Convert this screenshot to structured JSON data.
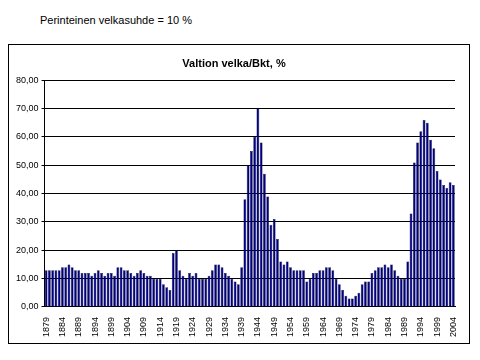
{
  "chart_data": {
    "type": "bar",
    "title": "Valtion velka/Bkt, %",
    "subtitle": "Perinteinen velkasuhde = 10 %",
    "categories": [
      "1879",
      null,
      null,
      null,
      null,
      "1884",
      null,
      null,
      null,
      null,
      "1889",
      null,
      null,
      null,
      null,
      "1894",
      null,
      null,
      null,
      null,
      "1899",
      null,
      null,
      null,
      null,
      "1904",
      null,
      null,
      null,
      null,
      "1909",
      null,
      null,
      null,
      null,
      "1914",
      null,
      null,
      null,
      null,
      "1919",
      null,
      null,
      null,
      null,
      "1924",
      null,
      null,
      null,
      null,
      "1929",
      null,
      null,
      null,
      null,
      "1934",
      null,
      null,
      null,
      null,
      "1939",
      null,
      null,
      null,
      null,
      "1944",
      null,
      null,
      null,
      null,
      "1949",
      null,
      null,
      null,
      null,
      "1954",
      null,
      null,
      null,
      null,
      "1959",
      null,
      null,
      null,
      null,
      "1964",
      null,
      null,
      null,
      null,
      "1969",
      null,
      null,
      null,
      null,
      "1974",
      null,
      null,
      null,
      null,
      "1979",
      null,
      null,
      null,
      null,
      "1984",
      null,
      null,
      null,
      null,
      "1989",
      null,
      null,
      null,
      null,
      "1994",
      null,
      null,
      null,
      null,
      "1999",
      null,
      null,
      null,
      null,
      "2004"
    ],
    "values": [
      13,
      13,
      13,
      13,
      13,
      14,
      14,
      15,
      14,
      13,
      13,
      12,
      12,
      12,
      11,
      12,
      13,
      12,
      11,
      12,
      12,
      11,
      14,
      14,
      13,
      13,
      12,
      11,
      12,
      13,
      12,
      11,
      11,
      10,
      10,
      10,
      8,
      7,
      6,
      19,
      20,
      13,
      11,
      10,
      12,
      11,
      12,
      10,
      10,
      10,
      11,
      13,
      15,
      15,
      14,
      12,
      11,
      10,
      9,
      8,
      14,
      38,
      50,
      55,
      60,
      70,
      58,
      47,
      39,
      29,
      31,
      24,
      16,
      15,
      16,
      14,
      13,
      13,
      13,
      13,
      9,
      10,
      12,
      12,
      13,
      13,
      14,
      14,
      13,
      10,
      8,
      6,
      4,
      3,
      3,
      4,
      5,
      8,
      9,
      9,
      12,
      13,
      14,
      14,
      15,
      14,
      15,
      13,
      11,
      10,
      10,
      16,
      33,
      51,
      58,
      62,
      66,
      65,
      59,
      56,
      48,
      45,
      43,
      42,
      44,
      43
    ],
    "color": "#000080",
    "ylim": [
      0,
      80
    ],
    "yticks": [
      {
        "value": 0,
        "label": "0,00"
      },
      {
        "value": 10,
        "label": "10,00"
      },
      {
        "value": 20,
        "label": "20,00"
      },
      {
        "value": 30,
        "label": "30,00"
      },
      {
        "value": 40,
        "label": "40,00"
      },
      {
        "value": 50,
        "label": "50,00"
      },
      {
        "value": 60,
        "label": "60,00"
      },
      {
        "value": 70,
        "label": "70,00"
      },
      {
        "value": 80,
        "label": "80,00"
      }
    ],
    "grid": true
  }
}
